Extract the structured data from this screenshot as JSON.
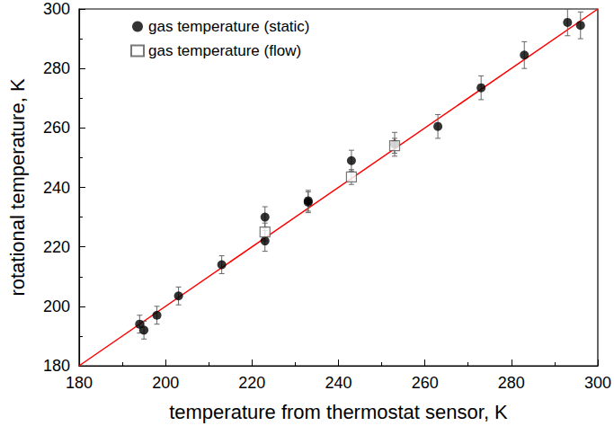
{
  "chart_data": {
    "type": "scatter",
    "xlabel": "temperature from thermostat sensor, K",
    "ylabel": "rotational temperature, K",
    "xlim": [
      180,
      300
    ],
    "ylim": [
      180,
      300
    ],
    "xticks": [
      180,
      200,
      220,
      240,
      260,
      280,
      300
    ],
    "yticks": [
      180,
      200,
      220,
      240,
      260,
      280,
      300
    ],
    "grid": false,
    "legend": "upper-left",
    "series": [
      {
        "name": "gas temperature (static)",
        "type": "scatter",
        "color": "#000000",
        "marker": "circle",
        "x": [
          194,
          195,
          198,
          203,
          213,
          223,
          223,
          233,
          233,
          243,
          253,
          263,
          273,
          283,
          293,
          296
        ],
        "values": [
          194,
          192,
          197,
          203.5,
          214,
          230,
          222,
          235.5,
          235,
          249,
          254.5,
          260.5,
          273.5,
          284.5,
          295.5,
          294.5
        ],
        "errors": [
          3,
          3,
          3,
          3,
          3,
          3.5,
          3.5,
          3.5,
          3.5,
          3.5,
          4,
          4,
          4,
          4.5,
          4.5,
          4.5
        ]
      },
      {
        "name": "gas temperature (flow)",
        "type": "scatter",
        "color": "#555555",
        "marker": "square",
        "x": [
          223,
          243,
          253
        ],
        "values": [
          225,
          243.5,
          254
        ],
        "errors": [
          3,
          2.5,
          2.5
        ]
      },
      {
        "type": "line",
        "color": "#ff0000",
        "line_style": "solid",
        "x": [
          180,
          300
        ],
        "values": [
          180,
          300
        ]
      }
    ]
  }
}
